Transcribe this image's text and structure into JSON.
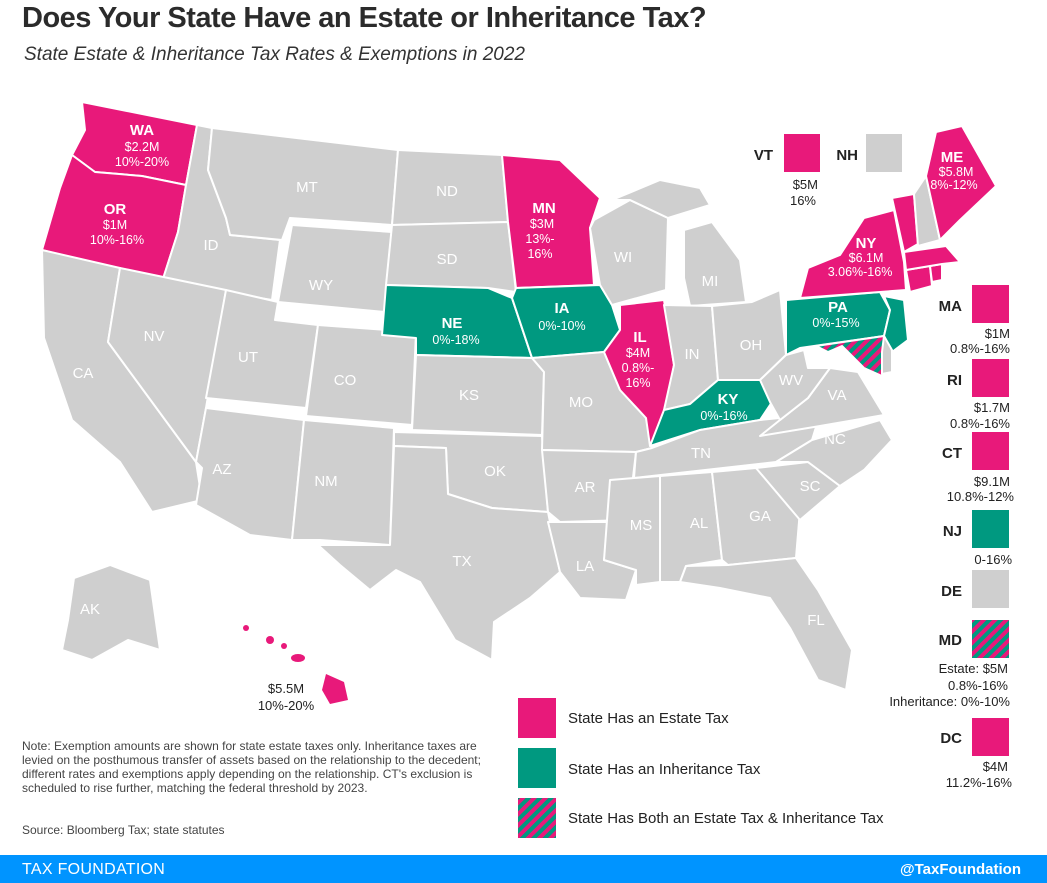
{
  "title": "Does Your State Have an Estate or Inheritance Tax?",
  "subtitle": "State Estate & Inheritance Tax Rates & Exemptions in 2022",
  "colors": {
    "estate": "#e8197a",
    "inheritance": "#009980",
    "none": "#cfcfcf",
    "footer": "#0094ff"
  },
  "states": {
    "WA": {
      "abbr": "WA",
      "exemption": "$2.2M",
      "rate": "10%-20%"
    },
    "OR": {
      "abbr": "OR",
      "exemption": "$1M",
      "rate": "10%-16%"
    },
    "MN": {
      "abbr": "MN",
      "exemption": "$3M",
      "rate1": "13%-",
      "rate2": "16%"
    },
    "IL": {
      "abbr": "IL",
      "exemption": "$4M",
      "rate1": "0.8%-",
      "rate2": "16%"
    },
    "NY": {
      "abbr": "NY",
      "exemption": "$6.1M",
      "rate": "3.06%-16%"
    },
    "ME": {
      "abbr": "ME",
      "exemption": "$5.8M",
      "rate": "8%-12%"
    },
    "NE": {
      "abbr": "NE",
      "rate": "0%-18%"
    },
    "IA": {
      "abbr": "IA",
      "rate": "0%-10%"
    },
    "PA": {
      "abbr": "PA",
      "rate": "0%-15%"
    },
    "KY": {
      "abbr": "KY",
      "rate": "0%-16%"
    },
    "HI": {
      "exemption": "$5.5M",
      "rate": "10%-20%"
    }
  },
  "no_tax_labels": {
    "MT": "MT",
    "ND": "ND",
    "ID": "ID",
    "SD": "SD",
    "WY": "WY",
    "NV": "NV",
    "UT": "UT",
    "CA": "CA",
    "CO": "CO",
    "KS": "KS",
    "AZ": "AZ",
    "NM": "NM",
    "OK": "OK",
    "TX": "TX",
    "WI": "WI",
    "MI": "MI",
    "IN": "IN",
    "OH": "OH",
    "MO": "MO",
    "AR": "AR",
    "LA": "LA",
    "MS": "MS",
    "AL": "AL",
    "TN": "TN",
    "GA": "GA",
    "SC": "SC",
    "NC": "NC",
    "VA": "VA",
    "WV": "WV",
    "FL": "FL",
    "AK": "AK"
  },
  "small_states": {
    "VT": {
      "abbr": "VT",
      "exemption": "$5M",
      "rate": "16%"
    },
    "NH": {
      "abbr": "NH"
    },
    "MA": {
      "abbr": "MA",
      "exemption": "$1M",
      "rate": "0.8%-16%"
    },
    "RI": {
      "abbr": "RI",
      "exemption": "$1.7M",
      "rate": "0.8%-16%"
    },
    "CT": {
      "abbr": "CT",
      "exemption": "$9.1M",
      "rate": "10.8%-12%"
    },
    "NJ": {
      "abbr": "NJ",
      "rate": "0-16%"
    },
    "DE": {
      "abbr": "DE"
    },
    "MD": {
      "abbr": "MD",
      "line1": "Estate: $5M",
      "line2": "0.8%-16%",
      "line3": "Inheritance: 0%-10%"
    },
    "DC": {
      "abbr": "DC",
      "exemption": "$4M",
      "rate": "11.2%-16%"
    }
  },
  "legend": {
    "estate": "State Has an Estate Tax",
    "inheritance": "State Has an Inheritance Tax",
    "both": "State Has Both an Estate Tax & Inheritance Tax"
  },
  "note": "Note: Exemption amounts are shown for state estate taxes only. Inheritance taxes are levied on the posthumous transfer of assets based on the relationship to the decedent; different rates and exemptions apply depending on the relationship. CT's exclusion is scheduled to rise further, matching the federal threshold by 2023.",
  "source": "Source: Bloomberg Tax; state statutes",
  "footer": {
    "left": "TAX FOUNDATION",
    "right": "@TaxFoundation"
  }
}
